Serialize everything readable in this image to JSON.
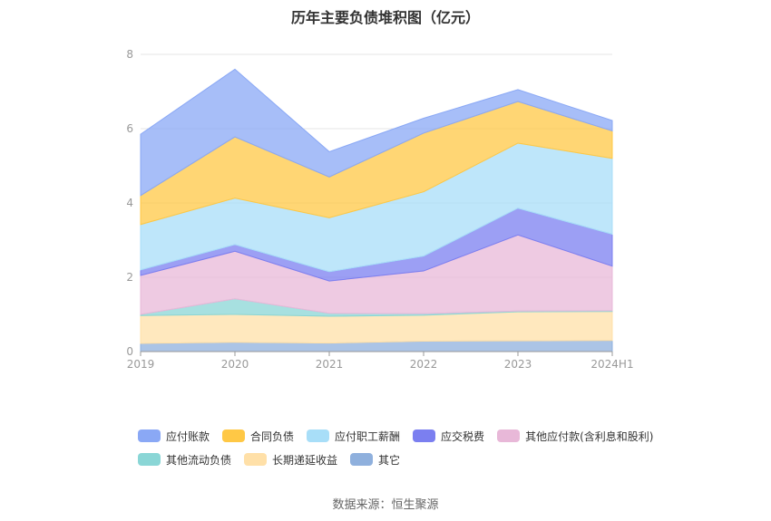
{
  "chart_data": {
    "type": "area",
    "stacked": true,
    "title": "历年主要负债堆积图（亿元）",
    "x": [
      "2019",
      "2020",
      "2021",
      "2022",
      "2023",
      "2024H1"
    ],
    "ylim": [
      0,
      8
    ],
    "yticks": [
      0,
      2,
      4,
      6,
      8
    ],
    "grid": true,
    "legend_position": "bottom",
    "series": [
      {
        "name": "其它",
        "color": "#8fb0dd",
        "values": [
          0.22,
          0.25,
          0.23,
          0.28,
          0.29,
          0.3
        ]
      },
      {
        "name": "长期递延收益",
        "color": "#ffe0a8",
        "values": [
          0.75,
          0.75,
          0.72,
          0.7,
          0.78,
          0.78
        ]
      },
      {
        "name": "其他流动负债",
        "color": "#8ad6d6",
        "values": [
          0.03,
          0.42,
          0.08,
          0.04,
          0.02,
          0.02
        ]
      },
      {
        "name": "其他应付款(含利息和股利)",
        "color": "#e8b8d8",
        "values": [
          1.05,
          1.28,
          0.87,
          1.15,
          2.05,
          1.2
        ]
      },
      {
        "name": "应交税费",
        "color": "#7b7ff0",
        "values": [
          0.15,
          0.18,
          0.25,
          0.4,
          0.72,
          0.86
        ]
      },
      {
        "name": "应付职工薪酬",
        "color": "#a8def8",
        "values": [
          1.22,
          1.25,
          1.45,
          1.73,
          1.75,
          2.04
        ]
      },
      {
        "name": "合同负债",
        "color": "#ffc845",
        "values": [
          0.78,
          1.65,
          1.1,
          1.58,
          1.12,
          0.74
        ]
      },
      {
        "name": "应付账款",
        "color": "#8aa8f5",
        "values": [
          1.65,
          1.82,
          0.68,
          0.4,
          0.32,
          0.28
        ]
      }
    ]
  },
  "legend": {
    "order": [
      "应付账款",
      "合同负债",
      "应付职工薪酬",
      "应交税费",
      "其他应付款(含利息和股利)",
      "其他流动负债",
      "长期递延收益",
      "其它"
    ]
  },
  "footer": {
    "source": "数据来源：恒生聚源"
  }
}
